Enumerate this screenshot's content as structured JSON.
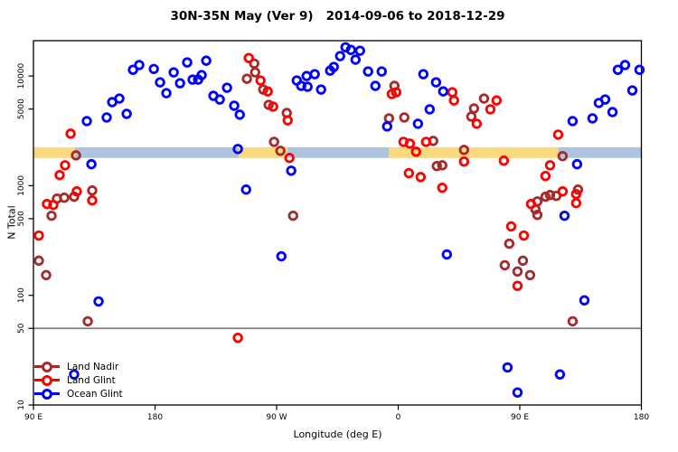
{
  "title": "30N-35N May (Ver 9)   2014-09-06 to 2018-12-29",
  "chart_data": {
    "type": "scatter",
    "title": "30N-35N May (Ver 9)   2014-09-06 to 2018-12-29",
    "xlabel": "Longitude (deg E)",
    "ylabel": "N Total",
    "x_axis": {
      "range": [
        90,
        540
      ],
      "note": "longitude unwrapped eastward starting at 90E",
      "ticks": [
        {
          "value": 90,
          "label": "90 E"
        },
        {
          "value": 180,
          "label": "180"
        },
        {
          "value": 270,
          "label": "90 W"
        },
        {
          "value": 360,
          "label": "0"
        },
        {
          "value": 450,
          "label": "90 E"
        },
        {
          "value": 540,
          "label": "180"
        }
      ]
    },
    "y_axis": {
      "scale": "log",
      "range": [
        10,
        21000
      ],
      "ticks": [
        {
          "value": 10,
          "label": "10"
        },
        {
          "value": 50,
          "label": "50"
        },
        {
          "value": 100,
          "label": "100"
        },
        {
          "value": 500,
          "label": "500"
        },
        {
          "value": 1000,
          "label": "1000"
        },
        {
          "value": 5000,
          "label": "5000"
        },
        {
          "value": 10000,
          "label": "10000"
        }
      ]
    },
    "reference_line": {
      "value": 50,
      "color": "#7f7f7f"
    },
    "band": {
      "n_center": 2000,
      "n_top": 2240,
      "n_bottom": 1790,
      "segments": [
        {
          "color_name": "orange",
          "color": "#FAD87E",
          "from": 90,
          "to": 120.8
        },
        {
          "color_name": "blue",
          "color": "#AEC3DE",
          "from": 120.8,
          "to": 242.0
        },
        {
          "color_name": "orange",
          "color": "#FAD87E",
          "from": 242.0,
          "to": 278.2
        },
        {
          "color_name": "blue",
          "color": "#AEC3DE",
          "from": 278.2,
          "to": 353.2
        },
        {
          "color_name": "orange",
          "color": "#FAD87E",
          "from": 353.2,
          "to": 478.4
        },
        {
          "color_name": "blue",
          "color": "#AEC3DE",
          "from": 478.4,
          "to": 540
        }
      ]
    },
    "series": [
      {
        "name": "Land Nadir",
        "color": "#A52A2A",
        "points": [
          [
            121.5,
            1890
          ],
          [
            107.4,
            762
          ],
          [
            112.8,
            777
          ],
          [
            120.1,
            793
          ],
          [
            103.4,
            532
          ],
          [
            133.5,
            904
          ],
          [
            94.0,
            207
          ],
          [
            99.4,
            153
          ],
          [
            130.2,
            58
          ],
          [
            253.4,
            13000
          ],
          [
            254.1,
            10800
          ],
          [
            248.0,
            9440
          ],
          [
            260.1,
            7530
          ],
          [
            264.1,
            5460
          ],
          [
            277.5,
            4600
          ],
          [
            268.1,
            2510
          ],
          [
            272.8,
            2080
          ],
          [
            282.2,
            532
          ],
          [
            357.2,
            8130
          ],
          [
            353.2,
            4110
          ],
          [
            364.5,
            4190
          ],
          [
            385.9,
            2560
          ],
          [
            388.6,
            1510
          ],
          [
            392.6,
            1535
          ],
          [
            408.7,
            2120
          ],
          [
            416.1,
            5060
          ],
          [
            414.1,
            4270
          ],
          [
            423.5,
            6230
          ],
          [
            481.7,
            1860
          ],
          [
            493.1,
            921
          ],
          [
            463.0,
            719
          ],
          [
            469.0,
            793
          ],
          [
            472.4,
            822
          ],
          [
            477.0,
            807
          ],
          [
            461.6,
            608
          ],
          [
            463.0,
            542
          ],
          [
            442.2,
            296
          ],
          [
            438.9,
            188
          ],
          [
            452.3,
            207
          ],
          [
            448.3,
            165
          ],
          [
            457.6,
            153
          ],
          [
            489.1,
            58
          ]
        ]
      },
      {
        "name": "Land Glint",
        "color": "#FF0000",
        "points": [
          [
            117.5,
            2980
          ],
          [
            113.4,
            1535
          ],
          [
            109.4,
            1250
          ],
          [
            122.1,
            887
          ],
          [
            100.0,
            681
          ],
          [
            104.7,
            668
          ],
          [
            133.5,
            734
          ],
          [
            94.0,
            351
          ],
          [
            249.4,
            14600
          ],
          [
            258.1,
            9100
          ],
          [
            263.4,
            7240
          ],
          [
            267.4,
            5260
          ],
          [
            278.2,
            3950
          ],
          [
            279.5,
            1790
          ],
          [
            355.2,
            6850
          ],
          [
            358.5,
            7110
          ],
          [
            400.0,
            7110
          ],
          [
            401.3,
            5990
          ],
          [
            363.9,
            2510
          ],
          [
            368.6,
            2420
          ],
          [
            380.6,
            2510
          ],
          [
            373.2,
            2040
          ],
          [
            367.9,
            1300
          ],
          [
            376.6,
            1200
          ],
          [
            392.6,
            958
          ],
          [
            408.7,
            1660
          ],
          [
            432.8,
            5990
          ],
          [
            428.2,
            4970
          ],
          [
            418.1,
            3670
          ],
          [
            438.2,
            1690
          ],
          [
            472.4,
            1535
          ],
          [
            469.0,
            1225
          ],
          [
            478.4,
            2920
          ],
          [
            481.7,
            887
          ],
          [
            491.7,
            838
          ],
          [
            491.7,
            694
          ],
          [
            458.3,
            681
          ],
          [
            443.6,
            425
          ],
          [
            453.0,
            351
          ],
          [
            448.3,
            122
          ],
          [
            241.3,
            41
          ]
        ]
      },
      {
        "name": "Ocean Glint",
        "color": "#0000FF",
        "points": [
          [
            163.7,
            11400
          ],
          [
            168.3,
            12600
          ],
          [
            179.1,
            11600
          ],
          [
            183.7,
            8760
          ],
          [
            188.4,
            6980
          ],
          [
            193.8,
            10800
          ],
          [
            198.5,
            8600
          ],
          [
            203.8,
            13300
          ],
          [
            207.8,
            9270
          ],
          [
            211.9,
            9270
          ],
          [
            214.5,
            10200
          ],
          [
            217.9,
            13800
          ],
          [
            223.2,
            6600
          ],
          [
            227.9,
            6110
          ],
          [
            233.3,
            7820
          ],
          [
            238.6,
            5360
          ],
          [
            242.7,
            4440
          ],
          [
            148.3,
            5780
          ],
          [
            153.6,
            6230
          ],
          [
            159.0,
            4520
          ],
          [
            144.2,
            4190
          ],
          [
            129.5,
            3880
          ],
          [
            132.9,
            1570
          ],
          [
            241.3,
            2160
          ],
          [
            247.4,
            921
          ],
          [
            273.5,
            227
          ],
          [
            284.9,
            9100
          ],
          [
            288.2,
            8130
          ],
          [
            292.9,
            7980
          ],
          [
            292.2,
            10000
          ],
          [
            298.2,
            10400
          ],
          [
            302.9,
            7530
          ],
          [
            309.6,
            11200
          ],
          [
            312.3,
            12100
          ],
          [
            317.0,
            15200
          ],
          [
            321.0,
            18300
          ],
          [
            325.0,
            17300
          ],
          [
            331.7,
            17000
          ],
          [
            328.4,
            14100
          ],
          [
            337.7,
            11000
          ],
          [
            347.8,
            11000
          ],
          [
            343.1,
            8130
          ],
          [
            351.8,
            3470
          ],
          [
            374.6,
            3670
          ],
          [
            383.3,
            4970
          ],
          [
            378.6,
            10400
          ],
          [
            388.0,
            8760
          ],
          [
            393.3,
            7240
          ],
          [
            396.0,
            236
          ],
          [
            280.8,
            1370
          ],
          [
            483.1,
            532
          ],
          [
            492.4,
            1570
          ],
          [
            497.8,
            90
          ],
          [
            489.1,
            3880
          ],
          [
            503.8,
            4110
          ],
          [
            508.5,
            5680
          ],
          [
            513.2,
            6110
          ],
          [
            518.6,
            4690
          ],
          [
            522.6,
            11400
          ],
          [
            527.9,
            12600
          ],
          [
            533.3,
            7390
          ],
          [
            538.6,
            11400
          ],
          [
            440.9,
            22
          ],
          [
            479.7,
            19
          ],
          [
            448.3,
            13
          ],
          [
            120.1,
            19
          ],
          [
            138.2,
            88
          ]
        ]
      }
    ],
    "legend_position": "bottom-left"
  },
  "legend": {
    "items": [
      {
        "label": "Land Nadir",
        "color": "#A52A2A"
      },
      {
        "label": "Land Glint",
        "color": "#FF0000"
      },
      {
        "label": "Ocean Glint",
        "color": "#0000FF"
      }
    ]
  }
}
